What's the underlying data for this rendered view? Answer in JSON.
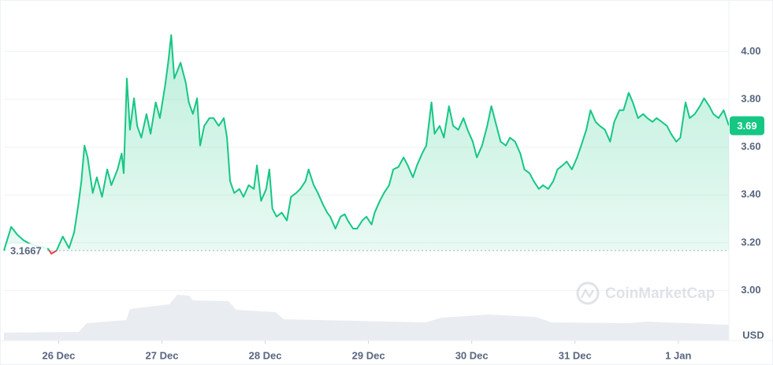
{
  "chart_data": {
    "type": "area",
    "color": "#16c784",
    "below_color": "#ea3943",
    "grid": true,
    "y_axis_label": "USD",
    "watermark": "CoinMarketCap",
    "reference_line": 3.1667,
    "current_price": 3.69,
    "xlim": [
      -0.53,
      6.49
    ],
    "xticks": [
      {
        "value": 0,
        "label": "26 Dec"
      },
      {
        "value": 1,
        "label": "27 Dec"
      },
      {
        "value": 2,
        "label": "28 Dec"
      },
      {
        "value": 3,
        "label": "29 Dec"
      },
      {
        "value": 4,
        "label": "30 Dec"
      },
      {
        "value": 5,
        "label": "31 Dec"
      },
      {
        "value": 6,
        "label": "1 Jan"
      }
    ],
    "ylim": [
      2.79,
      4.2
    ],
    "yticks": [
      {
        "value": 3,
        "label": "3.00"
      },
      {
        "value": 3.2,
        "label": "3.20"
      },
      {
        "value": 3.4,
        "label": "3.40"
      },
      {
        "value": 3.6,
        "label": "3.60"
      },
      {
        "value": 3.8,
        "label": "3.80"
      },
      {
        "value": 4,
        "label": "4.00"
      }
    ],
    "x": [
      -0.53,
      -0.46,
      -0.4,
      -0.34,
      -0.27,
      -0.15,
      -0.1,
      -0.07,
      -0.02,
      0.04,
      0.1,
      0.15,
      0.19,
      0.22,
      0.25,
      0.28,
      0.33,
      0.37,
      0.42,
      0.47,
      0.51,
      0.57,
      0.61,
      0.63,
      0.66,
      0.69,
      0.73,
      0.76,
      0.8,
      0.85,
      0.89,
      0.94,
      0.98,
      1.03,
      1.06,
      1.09,
      1.12,
      1.15,
      1.18,
      1.23,
      1.26,
      1.3,
      1.34,
      1.37,
      1.41,
      1.46,
      1.5,
      1.55,
      1.6,
      1.63,
      1.66,
      1.7,
      1.75,
      1.79,
      1.84,
      1.89,
      1.92,
      1.96,
      2.01,
      2.04,
      2.07,
      2.11,
      2.16,
      2.21,
      2.25,
      2.3,
      2.34,
      2.39,
      2.42,
      2.47,
      2.51,
      2.56,
      2.6,
      2.63,
      2.68,
      2.73,
      2.77,
      2.8,
      2.85,
      2.89,
      2.94,
      2.98,
      3.03,
      3.06,
      3.11,
      3.15,
      3.2,
      3.24,
      3.29,
      3.34,
      3.38,
      3.43,
      3.47,
      3.52,
      3.56,
      3.61,
      3.64,
      3.69,
      3.73,
      3.78,
      3.82,
      3.87,
      3.92,
      3.96,
      4.01,
      4.05,
      4.1,
      4.15,
      4.19,
      4.24,
      4.28,
      4.33,
      4.37,
      4.42,
      4.47,
      4.51,
      4.56,
      4.6,
      4.65,
      4.69,
      4.74,
      4.79,
      4.83,
      4.88,
      4.92,
      4.97,
      5.02,
      5.06,
      5.11,
      5.15,
      5.2,
      5.24,
      5.29,
      5.34,
      5.38,
      5.43,
      5.47,
      5.52,
      5.56,
      5.61,
      5.66,
      5.7,
      5.75,
      5.79,
      5.84,
      5.89,
      5.93,
      5.98,
      6.02,
      6.07,
      6.11,
      6.16,
      6.21,
      6.25,
      6.3,
      6.34,
      6.39,
      6.44,
      6.49
    ],
    "values": [
      3.167,
      3.266,
      3.233,
      3.21,
      3.193,
      3.18,
      3.173,
      3.154,
      3.167,
      3.226,
      3.177,
      3.243,
      3.359,
      3.458,
      3.607,
      3.557,
      3.408,
      3.474,
      3.392,
      3.507,
      3.441,
      3.507,
      3.574,
      3.491,
      3.888,
      3.673,
      3.805,
      3.689,
      3.64,
      3.739,
      3.656,
      3.788,
      3.722,
      3.855,
      3.954,
      4.07,
      3.888,
      3.921,
      3.954,
      3.871,
      3.788,
      3.739,
      3.805,
      3.607,
      3.689,
      3.722,
      3.722,
      3.689,
      3.722,
      3.64,
      3.458,
      3.408,
      3.425,
      3.392,
      3.441,
      3.425,
      3.524,
      3.375,
      3.425,
      3.507,
      3.342,
      3.309,
      3.326,
      3.293,
      3.392,
      3.408,
      3.425,
      3.458,
      3.507,
      3.441,
      3.408,
      3.359,
      3.326,
      3.309,
      3.259,
      3.309,
      3.319,
      3.293,
      3.259,
      3.259,
      3.293,
      3.309,
      3.276,
      3.326,
      3.375,
      3.408,
      3.441,
      3.507,
      3.517,
      3.557,
      3.524,
      3.474,
      3.524,
      3.574,
      3.607,
      3.788,
      3.656,
      3.689,
      3.64,
      3.772,
      3.689,
      3.673,
      3.722,
      3.673,
      3.623,
      3.557,
      3.607,
      3.689,
      3.772,
      3.689,
      3.623,
      3.607,
      3.64,
      3.623,
      3.574,
      3.507,
      3.491,
      3.458,
      3.425,
      3.441,
      3.425,
      3.458,
      3.507,
      3.524,
      3.54,
      3.507,
      3.557,
      3.607,
      3.673,
      3.755,
      3.706,
      3.689,
      3.673,
      3.623,
      3.706,
      3.755,
      3.755,
      3.828,
      3.788,
      3.722,
      3.739,
      3.722,
      3.706,
      3.722,
      3.706,
      3.689,
      3.656,
      3.623,
      3.64,
      3.788,
      3.722,
      3.739,
      3.772,
      3.805,
      3.772,
      3.739,
      3.722,
      3.755,
      3.69
    ]
  }
}
